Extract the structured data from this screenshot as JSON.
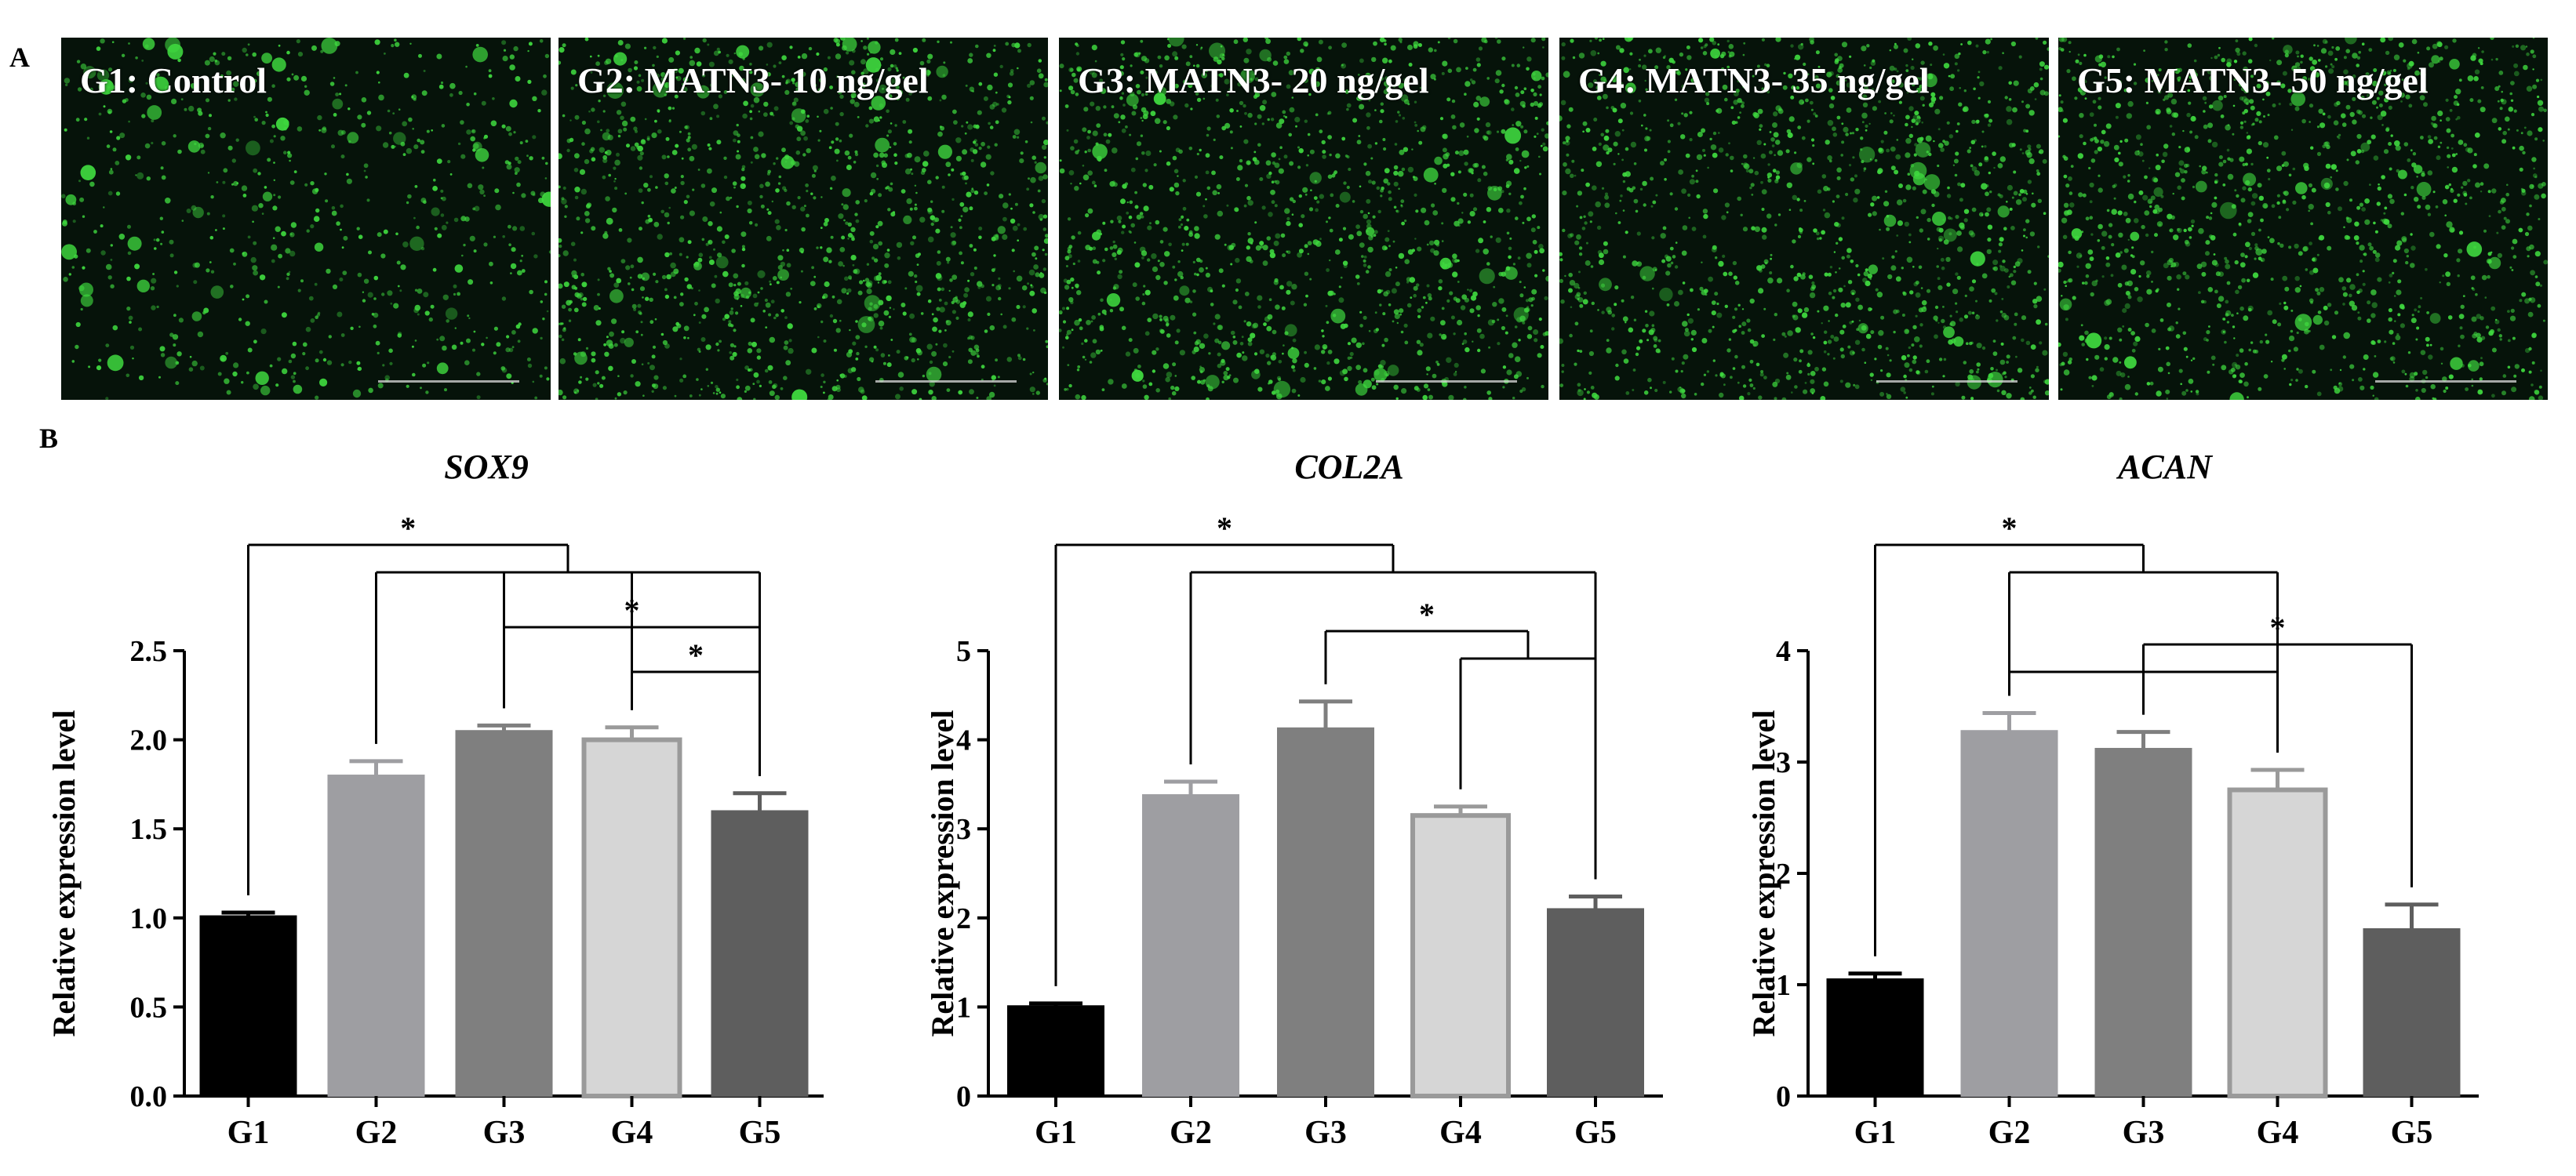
{
  "figure": {
    "panel_a_letter": "A",
    "panel_b_letter": "B"
  },
  "micrographs": [
    {
      "label": "G1: Control",
      "dot_color": "#3fd93f"
    },
    {
      "label": "G2: MATN3- 10 ng/gel",
      "dot_color": "#3fd93f"
    },
    {
      "label": "G3: MATN3- 20 ng/gel",
      "dot_color": "#3fd93f"
    },
    {
      "label": "G4: MATN3- 35 ng/gel",
      "dot_color": "#3fd93f"
    },
    {
      "label": "G5: MATN3- 50 ng/gel",
      "dot_color": "#3fd93f"
    }
  ],
  "chart_data": [
    {
      "type": "bar",
      "title": "SOX9",
      "ylabel": "Relative expression level",
      "xlabel": "",
      "categories": [
        "G1",
        "G2",
        "G3",
        "G4",
        "G5"
      ],
      "values": [
        1.01,
        1.8,
        2.05,
        2.0,
        1.6
      ],
      "errors": [
        0.02,
        0.08,
        0.03,
        0.07,
        0.1
      ],
      "colors": [
        "#000000",
        "#9e9ea2",
        "#7f7f7f",
        "#d6d6d6",
        "#5e5e5e"
      ],
      "ylim": [
        0,
        2.5
      ],
      "yticks": [
        "0.0",
        "0.5",
        "1.0",
        "1.5",
        "2.0",
        "2.5"
      ],
      "significance": [
        "*",
        "*",
        "*"
      ]
    },
    {
      "type": "bar",
      "title": "COL2A",
      "ylabel": "Relative expression level",
      "xlabel": "",
      "categories": [
        "G1",
        "G2",
        "G3",
        "G4",
        "G5"
      ],
      "values": [
        1.01,
        3.38,
        4.13,
        3.15,
        2.1
      ],
      "errors": [
        0.03,
        0.15,
        0.3,
        0.1,
        0.14
      ],
      "colors": [
        "#000000",
        "#9e9ea2",
        "#7f7f7f",
        "#d6d6d6",
        "#5e5e5e"
      ],
      "ylim": [
        0,
        5
      ],
      "yticks": [
        "0",
        "1",
        "2",
        "3",
        "4",
        "5"
      ],
      "significance": [
        "*",
        "*"
      ]
    },
    {
      "type": "bar",
      "title": "ACAN",
      "ylabel": "Relative expression level",
      "xlabel": "",
      "categories": [
        "G1",
        "G2",
        "G3",
        "G4",
        "G5"
      ],
      "values": [
        1.05,
        3.28,
        3.12,
        2.75,
        1.5
      ],
      "errors": [
        0.05,
        0.16,
        0.15,
        0.18,
        0.22
      ],
      "colors": [
        "#000000",
        "#9e9ea2",
        "#7f7f7f",
        "#d6d6d6",
        "#5e5e5e"
      ],
      "ylim": [
        0,
        4
      ],
      "yticks": [
        "0",
        "1",
        "2",
        "3",
        "4"
      ],
      "significance": [
        "*",
        "*"
      ]
    }
  ]
}
